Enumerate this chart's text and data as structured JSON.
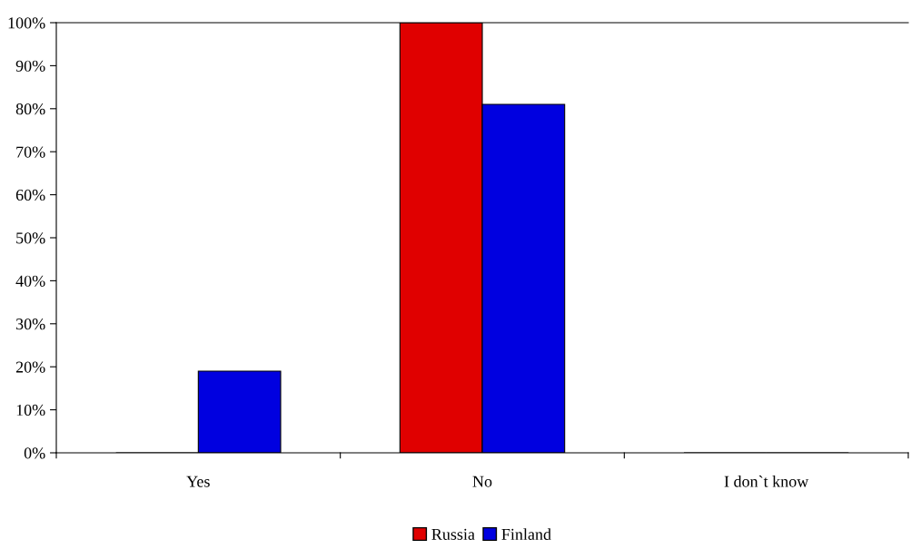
{
  "chart_data": {
    "type": "bar",
    "categories": [
      "Yes",
      "No",
      "I don`t know"
    ],
    "series": [
      {
        "name": "Russia",
        "color": "#e00000",
        "values": [
          0,
          100,
          0
        ]
      },
      {
        "name": "Finland",
        "color": "#0000e0",
        "values": [
          19,
          81,
          0
        ]
      }
    ],
    "ylim": [
      0,
      100
    ],
    "yticks": [
      {
        "value": 0,
        "label": "0%"
      },
      {
        "value": 10,
        "label": "10%"
      },
      {
        "value": 20,
        "label": "20%"
      },
      {
        "value": 30,
        "label": "30%"
      },
      {
        "value": 40,
        "label": "40%"
      },
      {
        "value": 50,
        "label": "50%"
      },
      {
        "value": 60,
        "label": "60%"
      },
      {
        "value": 70,
        "label": "70%"
      },
      {
        "value": 80,
        "label": "80%"
      },
      {
        "value": 90,
        "label": "90%"
      },
      {
        "value": 100,
        "label": "100%"
      }
    ],
    "grid": false,
    "legend": "bottom"
  }
}
